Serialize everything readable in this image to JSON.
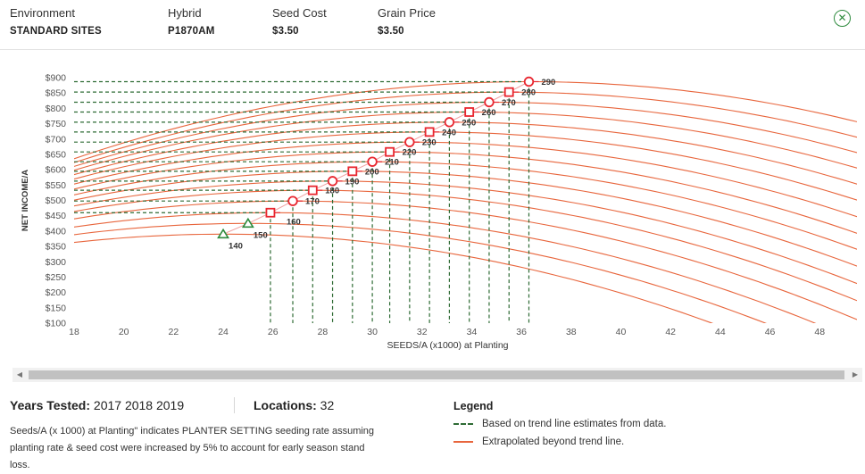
{
  "header": {
    "environment_label": "Environment",
    "environment_value": "STANDARD SITES",
    "hybrid_label": "Hybrid",
    "hybrid_value": "P1870AM",
    "seed_cost_label": "Seed Cost",
    "seed_cost_value": "$3.50",
    "grain_price_label": "Grain Price",
    "grain_price_value": "$3.50",
    "close_icon": "close-circle-icon"
  },
  "chart_data": {
    "type": "line",
    "xlabel": "SEEDS/A (x1000) at Planting",
    "ylabel": "NET INCOME/A",
    "xlim": [
      18,
      49.5
    ],
    "ylim": [
      100,
      900
    ],
    "x_ticks": [
      "18",
      "20",
      "22",
      "24",
      "26",
      "28",
      "30",
      "32",
      "34",
      "36",
      "38",
      "40",
      "42",
      "44",
      "46",
      "48"
    ],
    "y_ticks": [
      "$100",
      "$150",
      "$200",
      "$250",
      "$300",
      "$350",
      "$400",
      "$450",
      "$500",
      "$550",
      "$600",
      "$650",
      "$700",
      "$750",
      "$800",
      "$850",
      "$900"
    ],
    "optimum_points": [
      {
        "label": "140",
        "x": 24.0,
        "y": 390,
        "marker": "triangle"
      },
      {
        "label": "150",
        "x": 25.0,
        "y": 425,
        "marker": "triangle"
      },
      {
        "label": "160",
        "x": 25.9,
        "y": 460,
        "marker": "square"
      },
      {
        "label": "170",
        "x": 26.8,
        "y": 498,
        "marker": "circle"
      },
      {
        "label": "180",
        "x": 27.6,
        "y": 533,
        "marker": "square"
      },
      {
        "label": "190",
        "x": 28.4,
        "y": 563,
        "marker": "circle"
      },
      {
        "label": "200",
        "x": 29.2,
        "y": 595,
        "marker": "square"
      },
      {
        "label": "210",
        "x": 30.0,
        "y": 626,
        "marker": "circle"
      },
      {
        "label": "220",
        "x": 30.7,
        "y": 658,
        "marker": "square"
      },
      {
        "label": "230",
        "x": 31.5,
        "y": 690,
        "marker": "circle"
      },
      {
        "label": "240",
        "x": 32.3,
        "y": 723,
        "marker": "square"
      },
      {
        "label": "250",
        "x": 33.1,
        "y": 755,
        "marker": "circle"
      },
      {
        "label": "260",
        "x": 33.9,
        "y": 788,
        "marker": "square"
      },
      {
        "label": "270",
        "x": 34.7,
        "y": 820,
        "marker": "circle"
      },
      {
        "label": "280",
        "x": 35.5,
        "y": 853,
        "marker": "square"
      },
      {
        "label": "290",
        "x": 36.3,
        "y": 887,
        "marker": "circle"
      }
    ],
    "curve_x_start": 18,
    "curve_x_end": 49.5,
    "curve_fall_rate": 0.75,
    "colors": {
      "trend": "#2e6b34",
      "extrapolated": "#e8663d",
      "marker": "#e8262f",
      "triangle": "#2e8b3d",
      "connector": "#f0a0a0",
      "axis_text": "#555555"
    }
  },
  "scroll": {
    "left_arrow": "◀",
    "right_arrow": "▶"
  },
  "stats": {
    "years_label": "Years Tested:",
    "years_value": "2017 2018 2019",
    "locations_label": "Locations:",
    "locations_value": "32"
  },
  "note": "Seeds/A (x 1000) at Planting\" indicates PLANTER SETTING seeding rate assuming planting rate & seed cost were increased by 5% to account for early season stand loss.",
  "legend": {
    "title": "Legend",
    "trend_label": "Based on trend line estimates from data.",
    "extrapolated_label": "Extrapolated beyond trend line."
  }
}
